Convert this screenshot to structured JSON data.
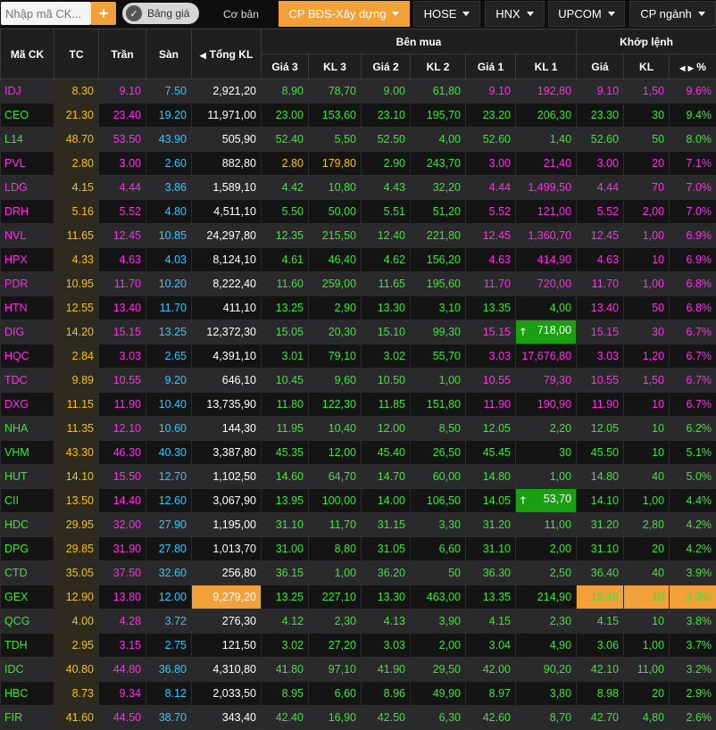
{
  "toolbar": {
    "search_placeholder": "Nhập mã CK...",
    "add_label": "+",
    "toggle_label": "Bảng giá",
    "basic_label": "Cơ bản",
    "tabs": [
      {
        "label": "CP BĐS-Xây dựng",
        "active": true
      },
      {
        "label": "HOSE",
        "active": false
      },
      {
        "label": "HNX",
        "active": false
      },
      {
        "label": "UPCOM",
        "active": false
      },
      {
        "label": "CP ngành",
        "active": false
      }
    ]
  },
  "headers": {
    "symbol": "Mã CK",
    "ref": "TC",
    "ceil": "Trần",
    "floor": "Sàn",
    "total": "Tổng KL",
    "buy_group": "Bên mua",
    "match_group": "Khớp lệnh",
    "buy_cols": [
      "Giá 3",
      "KL 3",
      "Giá 2",
      "KL 2",
      "Giá 1",
      "KL 1"
    ],
    "match_price": "Giá",
    "match_vol": "KL",
    "pct": "%"
  },
  "colors": {
    "ref": "#f5c400",
    "ceil": "#ff2ee9",
    "floor": "#2fc8ff",
    "up": "#3fe33a",
    "accent": "#f2a03a",
    "highlight_green": "#1a9e12"
  },
  "rows": [
    {
      "sym": "IDJ",
      "tc": "8.30",
      "tran": "9.10",
      "san": "7.50",
      "tong": "2,921,20",
      "g3": "8.90",
      "kl3": "78,70",
      "g2": "9.00",
      "kl2": "61,80",
      "g1": "9.10",
      "kl1": "192,80",
      "gia": "9.10",
      "kl": "1,50",
      "pct": "9.6%",
      "sc": "ceil",
      "c3": "up",
      "c2": "up",
      "c1": "ceil",
      "cm": "ceil"
    },
    {
      "sym": "CEO",
      "tc": "21.30",
      "tran": "23.40",
      "san": "19.20",
      "tong": "11,971,00",
      "g3": "23.00",
      "kl3": "153,60",
      "g2": "23.10",
      "kl2": "195,70",
      "g1": "23.20",
      "kl1": "206,30",
      "gia": "23.30",
      "kl": "30",
      "pct": "9.4%",
      "sc": "up",
      "c3": "up",
      "c2": "up",
      "c1": "up",
      "cm": "up"
    },
    {
      "sym": "L14",
      "tc": "48.70",
      "tran": "53.50",
      "san": "43.90",
      "tong": "505,90",
      "g3": "52.40",
      "kl3": "5,50",
      "g2": "52.50",
      "kl2": "4,00",
      "g1": "52.60",
      "kl1": "1,40",
      "gia": "52.60",
      "kl": "50",
      "pct": "8.0%",
      "sc": "up",
      "c3": "up",
      "c2": "up",
      "c1": "up",
      "cm": "up"
    },
    {
      "sym": "PVL",
      "tc": "2.80",
      "tran": "3.00",
      "san": "2.60",
      "tong": "882,80",
      "g3": "2.80",
      "kl3": "179,80",
      "g2": "2.90",
      "kl2": "243,70",
      "g1": "3.00",
      "kl1": "21,40",
      "gia": "3.00",
      "kl": "20",
      "pct": "7.1%",
      "sc": "ceil",
      "c3": "ref",
      "c2": "up",
      "c1": "ceil",
      "cm": "ceil"
    },
    {
      "sym": "LDG",
      "tc": "4.15",
      "tran": "4.44",
      "san": "3.86",
      "tong": "1,589,10",
      "g3": "4.42",
      "kl3": "10,80",
      "g2": "4.43",
      "kl2": "32,20",
      "g1": "4.44",
      "kl1": "1,499,50",
      "gia": "4.44",
      "kl": "70",
      "pct": "7.0%",
      "sc": "ceil",
      "c3": "up",
      "c2": "up",
      "c1": "ceil",
      "cm": "ceil"
    },
    {
      "sym": "DRH",
      "tc": "5.16",
      "tran": "5.52",
      "san": "4.80",
      "tong": "4,511,10",
      "g3": "5.50",
      "kl3": "50,00",
      "g2": "5.51",
      "kl2": "51,20",
      "g1": "5.52",
      "kl1": "121,00",
      "gia": "5.52",
      "kl": "2,00",
      "pct": "7.0%",
      "sc": "ceil",
      "c3": "up",
      "c2": "up",
      "c1": "ceil",
      "cm": "ceil"
    },
    {
      "sym": "NVL",
      "tc": "11.65",
      "tran": "12.45",
      "san": "10.85",
      "tong": "24,297,80",
      "g3": "12.35",
      "kl3": "215,50",
      "g2": "12.40",
      "kl2": "221,80",
      "g1": "12.45",
      "kl1": "1,360,70",
      "gia": "12.45",
      "kl": "1,00",
      "pct": "6.9%",
      "sc": "ceil",
      "c3": "up",
      "c2": "up",
      "c1": "ceil",
      "cm": "ceil"
    },
    {
      "sym": "HPX",
      "tc": "4.33",
      "tran": "4.63",
      "san": "4.03",
      "tong": "8,124,10",
      "g3": "4.61",
      "kl3": "46,40",
      "g2": "4.62",
      "kl2": "156,20",
      "g1": "4.63",
      "kl1": "414,90",
      "gia": "4.63",
      "kl": "10",
      "pct": "6.9%",
      "sc": "ceil",
      "c3": "up",
      "c2": "up",
      "c1": "ceil",
      "cm": "ceil"
    },
    {
      "sym": "PDR",
      "tc": "10.95",
      "tran": "11.70",
      "san": "10.20",
      "tong": "8,222,40",
      "g3": "11.60",
      "kl3": "259,00",
      "g2": "11.65",
      "kl2": "195,60",
      "g1": "11.70",
      "kl1": "720,00",
      "gia": "11.70",
      "kl": "1,00",
      "pct": "6.8%",
      "sc": "ceil",
      "c3": "up",
      "c2": "up",
      "c1": "ceil",
      "cm": "ceil"
    },
    {
      "sym": "HTN",
      "tc": "12.55",
      "tran": "13.40",
      "san": "11.70",
      "tong": "411,10",
      "g3": "13.25",
      "kl3": "2,90",
      "g2": "13.30",
      "kl2": "3,10",
      "g1": "13.35",
      "kl1": "4,00",
      "gia": "13.40",
      "kl": "50",
      "pct": "6.8%",
      "sc": "ceil",
      "c3": "up",
      "c2": "up",
      "c1": "up",
      "cm": "ceil"
    },
    {
      "sym": "DIG",
      "tc": "14.20",
      "tran": "15.15",
      "san": "13.25",
      "tong": "12,372,30",
      "g3": "15.05",
      "kl3": "20,30",
      "g2": "15.10",
      "kl2": "99,30",
      "g1": "15.15",
      "kl1": "718,00",
      "gia": "15.15",
      "kl": "30",
      "pct": "6.7%",
      "sc": "ceil",
      "c3": "up",
      "c2": "up",
      "c1": "ceil",
      "cm": "ceil",
      "kl1_hl": true
    },
    {
      "sym": "HQC",
      "tc": "2.84",
      "tran": "3.03",
      "san": "2.65",
      "tong": "4,391,10",
      "g3": "3.01",
      "kl3": "79,10",
      "g2": "3.02",
      "kl2": "55,70",
      "g1": "3.03",
      "kl1": "17,676,80",
      "gia": "3.03",
      "kl": "1,20",
      "pct": "6.7%",
      "sc": "ceil",
      "c3": "up",
      "c2": "up",
      "c1": "ceil",
      "cm": "ceil"
    },
    {
      "sym": "TDC",
      "tc": "9.89",
      "tran": "10.55",
      "san": "9.20",
      "tong": "646,10",
      "g3": "10.45",
      "kl3": "9,60",
      "g2": "10.50",
      "kl2": "1,00",
      "g1": "10.55",
      "kl1": "79,30",
      "gia": "10.55",
      "kl": "1,50",
      "pct": "6.7%",
      "sc": "ceil",
      "c3": "up",
      "c2": "up",
      "c1": "ceil",
      "cm": "ceil"
    },
    {
      "sym": "DXG",
      "tc": "11.15",
      "tran": "11.90",
      "san": "10.40",
      "tong": "13,735,90",
      "g3": "11.80",
      "kl3": "122,30",
      "g2": "11.85",
      "kl2": "151,80",
      "g1": "11.90",
      "kl1": "190,90",
      "gia": "11.90",
      "kl": "10",
      "pct": "6.7%",
      "sc": "ceil",
      "c3": "up",
      "c2": "up",
      "c1": "ceil",
      "cm": "ceil"
    },
    {
      "sym": "NHA",
      "tc": "11.35",
      "tran": "12.10",
      "san": "10.60",
      "tong": "144,30",
      "g3": "11.95",
      "kl3": "10,40",
      "g2": "12.00",
      "kl2": "8,50",
      "g1": "12.05",
      "kl1": "2,20",
      "gia": "12.05",
      "kl": "10",
      "pct": "6.2%",
      "sc": "up",
      "c3": "up",
      "c2": "up",
      "c1": "up",
      "cm": "up"
    },
    {
      "sym": "VHM",
      "tc": "43.30",
      "tran": "46.30",
      "san": "40.30",
      "tong": "3,387,80",
      "g3": "45.35",
      "kl3": "12,00",
      "g2": "45.40",
      "kl2": "26,50",
      "g1": "45.45",
      "kl1": "30",
      "gia": "45.50",
      "kl": "10",
      "pct": "5.1%",
      "sc": "up",
      "c3": "up",
      "c2": "up",
      "c1": "up",
      "cm": "up"
    },
    {
      "sym": "HUT",
      "tc": "14.10",
      "tran": "15.50",
      "san": "12.70",
      "tong": "1,102,50",
      "g3": "14.60",
      "kl3": "64,70",
      "g2": "14.70",
      "kl2": "60,00",
      "g1": "14.80",
      "kl1": "1,00",
      "gia": "14.80",
      "kl": "40",
      "pct": "5.0%",
      "sc": "up",
      "c3": "up",
      "c2": "up",
      "c1": "up",
      "cm": "up"
    },
    {
      "sym": "CII",
      "tc": "13.50",
      "tran": "14.40",
      "san": "12.60",
      "tong": "3,067,90",
      "g3": "13.95",
      "kl3": "100,00",
      "g2": "14.00",
      "kl2": "106,50",
      "g1": "14.05",
      "kl1": "53,70",
      "gia": "14.10",
      "kl": "1,00",
      "pct": "4.4%",
      "sc": "up",
      "c3": "up",
      "c2": "up",
      "c1": "up",
      "cm": "up",
      "kl1_hl": true
    },
    {
      "sym": "HDC",
      "tc": "29.95",
      "tran": "32.00",
      "san": "27.90",
      "tong": "1,195,00",
      "g3": "31.10",
      "kl3": "11,70",
      "g2": "31.15",
      "kl2": "3,30",
      "g1": "31.20",
      "kl1": "11,00",
      "gia": "31.20",
      "kl": "2,80",
      "pct": "4.2%",
      "sc": "up",
      "c3": "up",
      "c2": "up",
      "c1": "up",
      "cm": "up"
    },
    {
      "sym": "DPG",
      "tc": "29.85",
      "tran": "31.90",
      "san": "27.80",
      "tong": "1,013,70",
      "g3": "31.00",
      "kl3": "8,80",
      "g2": "31.05",
      "kl2": "6,60",
      "g1": "31.10",
      "kl1": "2,00",
      "gia": "31.10",
      "kl": "20",
      "pct": "4.2%",
      "sc": "up",
      "c3": "up",
      "c2": "up",
      "c1": "up",
      "cm": "up"
    },
    {
      "sym": "CTD",
      "tc": "35.05",
      "tran": "37.50",
      "san": "32.60",
      "tong": "256,80",
      "g3": "36.15",
      "kl3": "1,00",
      "g2": "36.20",
      "kl2": "50",
      "g1": "36.30",
      "kl1": "2,50",
      "gia": "36.40",
      "kl": "40",
      "pct": "3.9%",
      "sc": "up",
      "c3": "up",
      "c2": "up",
      "c1": "up",
      "cm": "up"
    },
    {
      "sym": "GEX",
      "tc": "12.90",
      "tran": "13.80",
      "san": "12.00",
      "tong": "9,279,20",
      "g3": "13.25",
      "kl3": "227,10",
      "g2": "13.30",
      "kl2": "463,00",
      "g1": "13.35",
      "kl1": "214,90",
      "gia": "13.45",
      "kl": "10",
      "pct": "4.3%",
      "sc": "up",
      "c3": "up",
      "c2": "up",
      "c1": "up",
      "cm": "up",
      "tong_hl": true,
      "match_hl": true
    },
    {
      "sym": "QCG",
      "tc": "4.00",
      "tran": "4.28",
      "san": "3.72",
      "tong": "276,30",
      "g3": "4.12",
      "kl3": "2,30",
      "g2": "4.13",
      "kl2": "3,90",
      "g1": "4.15",
      "kl1": "2,30",
      "gia": "4.15",
      "kl": "10",
      "pct": "3.8%",
      "sc": "up",
      "c3": "up",
      "c2": "up",
      "c1": "up",
      "cm": "up"
    },
    {
      "sym": "TDH",
      "tc": "2.95",
      "tran": "3.15",
      "san": "2.75",
      "tong": "121,50",
      "g3": "3.02",
      "kl3": "27,20",
      "g2": "3.03",
      "kl2": "2,00",
      "g1": "3.04",
      "kl1": "4,90",
      "gia": "3.06",
      "kl": "1,00",
      "pct": "3.7%",
      "sc": "up",
      "c3": "up",
      "c2": "up",
      "c1": "up",
      "cm": "up"
    },
    {
      "sym": "IDC",
      "tc": "40.80",
      "tran": "44.80",
      "san": "36.80",
      "tong": "4,310,80",
      "g3": "41.80",
      "kl3": "97,10",
      "g2": "41.90",
      "kl2": "29,50",
      "g1": "42.00",
      "kl1": "90,20",
      "gia": "42.10",
      "kl": "11,00",
      "pct": "3.2%",
      "sc": "up",
      "c3": "up",
      "c2": "up",
      "c1": "up",
      "cm": "up"
    },
    {
      "sym": "HBC",
      "tc": "8.73",
      "tran": "9.34",
      "san": "8.12",
      "tong": "2,033,50",
      "g3": "8.95",
      "kl3": "6,60",
      "g2": "8.96",
      "kl2": "49,90",
      "g1": "8.97",
      "kl1": "3,80",
      "gia": "8.98",
      "kl": "20",
      "pct": "2.9%",
      "sc": "up",
      "c3": "up",
      "c2": "up",
      "c1": "up",
      "cm": "up"
    },
    {
      "sym": "FIR",
      "tc": "41.60",
      "tran": "44.50",
      "san": "38.70",
      "tong": "343,40",
      "g3": "42.40",
      "kl3": "16,90",
      "g2": "42.50",
      "kl2": "6,30",
      "g1": "42.60",
      "kl1": "8,70",
      "gia": "42.70",
      "kl": "4,80",
      "pct": "2.6%",
      "sc": "up",
      "c3": "up",
      "c2": "up",
      "c1": "up",
      "cm": "up"
    }
  ]
}
